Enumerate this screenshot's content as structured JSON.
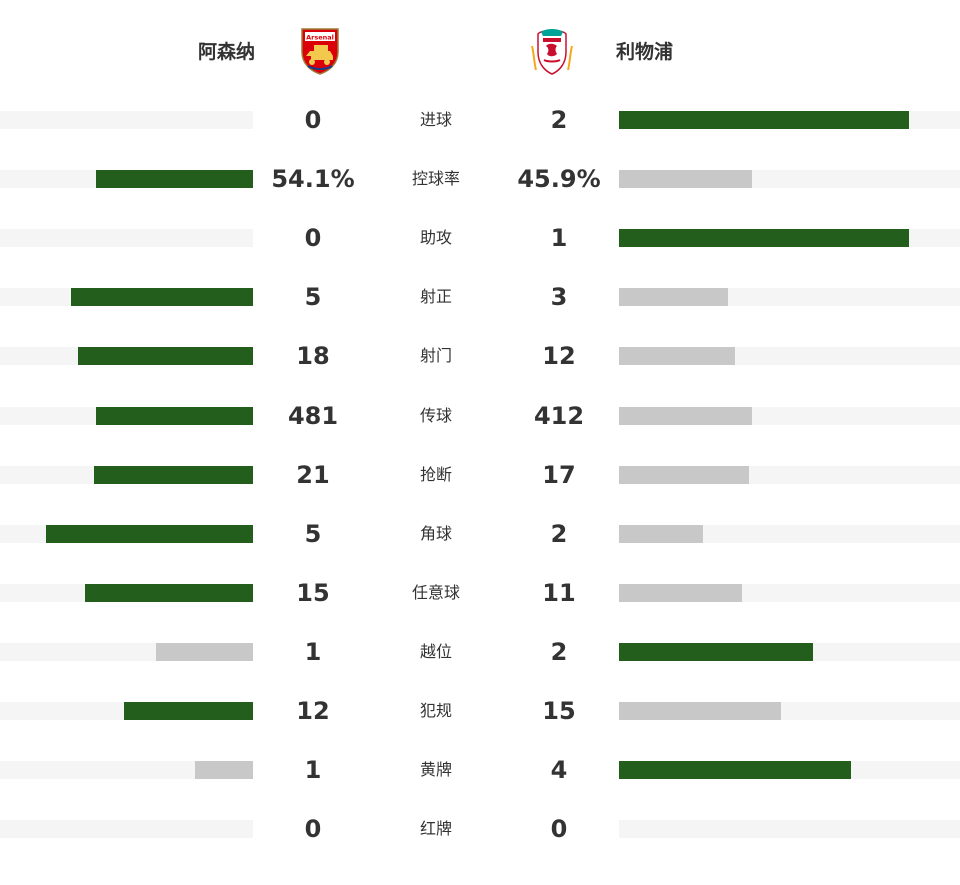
{
  "home": {
    "name": "阿森纳",
    "crest": {
      "icon": "arsenal-crest-icon",
      "wordmark": "Arsenal",
      "color": "#db0007"
    }
  },
  "away": {
    "name": "利物浦",
    "crest": {
      "icon": "liverpool-crest-icon",
      "color": "#c8102e"
    }
  },
  "colors": {
    "leading": "#245e1c",
    "trailing": "#c8c8c8",
    "track": "#f5f5f5"
  },
  "stats": [
    {
      "label": "进球",
      "home": "0",
      "away": "2",
      "home_bar": 0.0,
      "away_bar": 0.85
    },
    {
      "label": "控球率",
      "home": "54.1%",
      "away": "45.9%",
      "home_bar": 0.62,
      "away_bar": 0.39
    },
    {
      "label": "助攻",
      "home": "0",
      "away": "1",
      "home_bar": 0.0,
      "away_bar": 0.85
    },
    {
      "label": "射正",
      "home": "5",
      "away": "3",
      "home_bar": 0.72,
      "away_bar": 0.32
    },
    {
      "label": "射门",
      "home": "18",
      "away": "12",
      "home_bar": 0.69,
      "away_bar": 0.34
    },
    {
      "label": "传球",
      "home": "481",
      "away": "412",
      "home_bar": 0.62,
      "away_bar": 0.39
    },
    {
      "label": "抢断",
      "home": "21",
      "away": "17",
      "home_bar": 0.63,
      "away_bar": 0.38
    },
    {
      "label": "角球",
      "home": "5",
      "away": "2",
      "home_bar": 0.82,
      "away_bar": 0.245
    },
    {
      "label": "任意球",
      "home": "15",
      "away": "11",
      "home_bar": 0.665,
      "away_bar": 0.36
    },
    {
      "label": "越位",
      "home": "1",
      "away": "2",
      "home_bar": 0.385,
      "away_bar": 0.57
    },
    {
      "label": "犯规",
      "home": "12",
      "away": "15",
      "home_bar": 0.51,
      "away_bar": 0.475
    },
    {
      "label": "黄牌",
      "home": "1",
      "away": "4",
      "home_bar": 0.23,
      "away_bar": 0.68
    },
    {
      "label": "红牌",
      "home": "0",
      "away": "0",
      "home_bar": 0.0,
      "away_bar": 0.0
    }
  ]
}
